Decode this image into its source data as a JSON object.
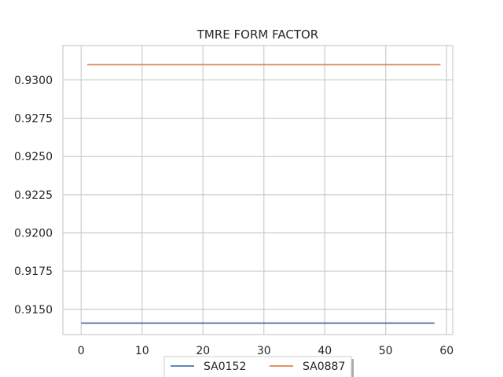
{
  "chart_data": {
    "type": "line",
    "title": "TMRE FORM FACTOR",
    "xlabel": "",
    "ylabel": "",
    "xlim": [
      -3,
      61
    ],
    "ylim": [
      0.91335,
      0.93225
    ],
    "xticks": [
      0,
      10,
      20,
      30,
      40,
      50,
      60
    ],
    "yticks": [
      0.915,
      0.9175,
      0.92,
      0.9225,
      0.925,
      0.9275,
      0.93
    ],
    "xtick_labels": [
      "0",
      "10",
      "20",
      "30",
      "40",
      "50",
      "60"
    ],
    "ytick_labels": [
      "0.9150",
      "0.9175",
      "0.9200",
      "0.9225",
      "0.9250",
      "0.9275",
      "0.9300"
    ],
    "grid": true,
    "legend_position": "bottom-center",
    "series": [
      {
        "name": "SA0152",
        "color": "#4c72b0",
        "x": [
          0,
          58
        ],
        "y": [
          0.9141,
          0.9141
        ]
      },
      {
        "name": "SA0887",
        "color": "#dd8452",
        "x": [
          1,
          59
        ],
        "y": [
          0.931,
          0.931
        ]
      }
    ]
  }
}
